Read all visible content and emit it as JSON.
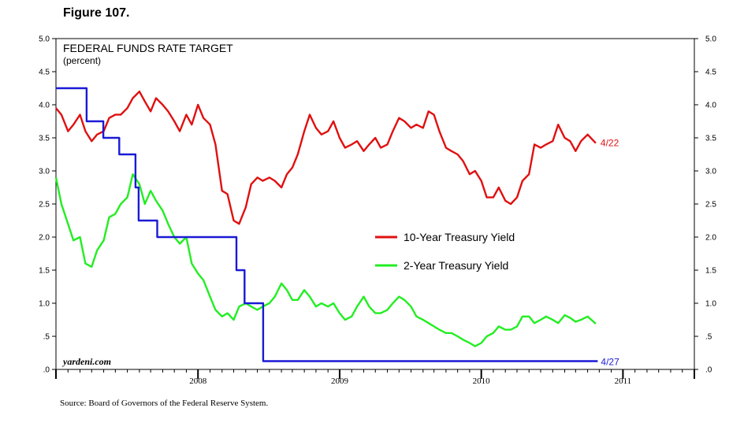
{
  "figure_title": "Figure 107.",
  "source": "Source: Board of Governors of the Federal Reserve System.",
  "credit": "yardeni.com",
  "colors": {
    "fed_funds": "#1a1ad6",
    "ten_year": "#e01010",
    "two_year": "#22ee22"
  },
  "chart_data": {
    "type": "line",
    "title": "FEDERAL FUNDS RATE TARGET",
    "subtitle": "(percent)",
    "xlabel": "",
    "ylabel": "",
    "ylim": [
      0,
      5
    ],
    "xlim": [
      "2007-07-01",
      "2012-01-01"
    ],
    "grid": false,
    "legend_position": "center-right",
    "y_ticks": [
      ".0",
      ".5",
      "1.0",
      "1.5",
      "2.0",
      "2.5",
      "3.0",
      "3.5",
      "4.0",
      "4.5",
      "5.0"
    ],
    "y_tick_values": [
      0,
      0.5,
      1,
      1.5,
      2,
      2.5,
      3,
      3.5,
      4,
      4.5,
      5
    ],
    "x_year_labels": [
      "2008",
      "2009",
      "2010",
      "2011"
    ],
    "x_year_label_dates": [
      "2008-07-01",
      "2009-07-01",
      "2010-07-01",
      "2011-07-01"
    ],
    "end_labels": {
      "ten_year": "4/22",
      "fed_funds": "4/27"
    },
    "series": [
      {
        "name": "10-Year Treasury Yield",
        "key": "ten_year",
        "x": [
          "2007-07-01",
          "2007-07-15",
          "2007-08-01",
          "2007-08-15",
          "2007-09-01",
          "2007-09-15",
          "2007-10-01",
          "2007-10-15",
          "2007-11-01",
          "2007-11-15",
          "2007-12-01",
          "2007-12-15",
          "2008-01-01",
          "2008-01-15",
          "2008-02-01",
          "2008-02-15",
          "2008-03-01",
          "2008-03-15",
          "2008-04-01",
          "2008-04-15",
          "2008-05-01",
          "2008-05-15",
          "2008-06-01",
          "2008-06-15",
          "2008-07-01",
          "2008-07-15",
          "2008-08-01",
          "2008-08-15",
          "2008-09-01",
          "2008-09-15",
          "2008-10-01",
          "2008-10-15",
          "2008-11-01",
          "2008-11-15",
          "2008-12-01",
          "2008-12-15",
          "2009-01-01",
          "2009-01-15",
          "2009-02-01",
          "2009-02-15",
          "2009-03-01",
          "2009-03-15",
          "2009-04-01",
          "2009-04-15",
          "2009-05-01",
          "2009-05-15",
          "2009-06-01",
          "2009-06-15",
          "2009-07-01",
          "2009-07-15",
          "2009-08-01",
          "2009-08-15",
          "2009-09-01",
          "2009-09-15",
          "2009-10-01",
          "2009-10-15",
          "2009-11-01",
          "2009-11-15",
          "2009-12-01",
          "2009-12-15",
          "2010-01-01",
          "2010-01-15",
          "2010-02-01",
          "2010-02-15",
          "2010-03-01",
          "2010-03-15",
          "2010-04-01",
          "2010-04-15",
          "2010-05-01",
          "2010-05-15",
          "2010-06-01",
          "2010-06-15",
          "2010-07-01",
          "2010-07-15",
          "2010-08-01",
          "2010-08-15",
          "2010-09-01",
          "2010-09-15",
          "2010-10-01",
          "2010-10-15",
          "2010-11-01",
          "2010-11-15",
          "2010-12-01",
          "2010-12-15",
          "2011-01-01",
          "2011-01-15",
          "2011-02-01",
          "2011-02-15",
          "2011-03-01",
          "2011-03-15",
          "2011-04-01",
          "2011-04-22"
        ],
        "values": [
          3.95,
          3.85,
          3.6,
          3.7,
          3.85,
          3.6,
          3.45,
          3.55,
          3.6,
          3.8,
          3.85,
          3.85,
          3.95,
          4.1,
          4.2,
          4.05,
          3.9,
          4.1,
          4.0,
          3.9,
          3.75,
          3.6,
          3.85,
          3.7,
          4.0,
          3.8,
          3.7,
          3.4,
          2.7,
          2.65,
          2.25,
          2.2,
          2.45,
          2.8,
          2.9,
          2.85,
          2.9,
          2.85,
          2.75,
          2.95,
          3.05,
          3.25,
          3.6,
          3.85,
          3.65,
          3.55,
          3.6,
          3.75,
          3.5,
          3.35,
          3.4,
          3.45,
          3.3,
          3.4,
          3.5,
          3.35,
          3.4,
          3.6,
          3.8,
          3.75,
          3.65,
          3.7,
          3.65,
          3.9,
          3.85,
          3.6,
          3.35,
          3.3,
          3.25,
          3.15,
          2.95,
          3.0,
          2.85,
          2.6,
          2.6,
          2.75,
          2.55,
          2.5,
          2.6,
          2.85,
          2.95,
          3.4,
          3.35,
          3.4,
          3.45,
          3.7,
          3.5,
          3.45,
          3.3,
          3.45,
          3.55,
          3.42
        ]
      },
      {
        "name": "2-Year Treasury Yield",
        "key": "two_year",
        "x": [
          "2007-07-01",
          "2007-07-15",
          "2007-08-01",
          "2007-08-15",
          "2007-09-01",
          "2007-09-15",
          "2007-10-01",
          "2007-10-15",
          "2007-11-01",
          "2007-11-15",
          "2007-12-01",
          "2007-12-15",
          "2008-01-01",
          "2008-01-15",
          "2008-02-01",
          "2008-02-15",
          "2008-03-01",
          "2008-03-15",
          "2008-04-01",
          "2008-04-15",
          "2008-05-01",
          "2008-05-15",
          "2008-06-01",
          "2008-06-15",
          "2008-07-01",
          "2008-07-15",
          "2008-08-01",
          "2008-08-15",
          "2008-09-01",
          "2008-09-15",
          "2008-10-01",
          "2008-10-15",
          "2008-11-01",
          "2008-11-15",
          "2008-12-01",
          "2008-12-15",
          "2009-01-01",
          "2009-01-15",
          "2009-02-01",
          "2009-02-15",
          "2009-03-01",
          "2009-03-15",
          "2009-04-01",
          "2009-04-15",
          "2009-05-01",
          "2009-05-15",
          "2009-06-01",
          "2009-06-15",
          "2009-07-01",
          "2009-07-15",
          "2009-08-01",
          "2009-08-15",
          "2009-09-01",
          "2009-09-15",
          "2009-10-01",
          "2009-10-15",
          "2009-11-01",
          "2009-11-15",
          "2009-12-01",
          "2009-12-15",
          "2010-01-01",
          "2010-01-15",
          "2010-02-01",
          "2010-02-15",
          "2010-03-01",
          "2010-03-15",
          "2010-04-01",
          "2010-04-15",
          "2010-05-01",
          "2010-05-15",
          "2010-06-01",
          "2010-06-15",
          "2010-07-01",
          "2010-07-15",
          "2010-08-01",
          "2010-08-15",
          "2010-09-01",
          "2010-09-15",
          "2010-10-01",
          "2010-10-15",
          "2010-11-01",
          "2010-11-15",
          "2010-12-01",
          "2010-12-15",
          "2011-01-01",
          "2011-01-15",
          "2011-02-01",
          "2011-02-15",
          "2011-03-01",
          "2011-03-15",
          "2011-04-01",
          "2011-04-22"
        ],
        "values": [
          2.9,
          2.5,
          2.2,
          1.95,
          2.0,
          1.6,
          1.55,
          1.8,
          1.95,
          2.3,
          2.35,
          2.5,
          2.6,
          2.95,
          2.8,
          2.5,
          2.7,
          2.55,
          2.4,
          2.2,
          2.0,
          1.9,
          2.0,
          1.6,
          1.45,
          1.35,
          1.1,
          0.9,
          0.8,
          0.85,
          0.75,
          0.95,
          1.0,
          0.95,
          0.9,
          0.95,
          1.0,
          1.1,
          1.3,
          1.2,
          1.05,
          1.05,
          1.2,
          1.1,
          0.95,
          1.0,
          0.95,
          1.0,
          0.85,
          0.75,
          0.8,
          0.95,
          1.1,
          0.95,
          0.85,
          0.85,
          0.9,
          1.0,
          1.1,
          1.05,
          0.95,
          0.8,
          0.75,
          0.7,
          0.65,
          0.6,
          0.55,
          0.55,
          0.5,
          0.45,
          0.4,
          0.35,
          0.4,
          0.5,
          0.55,
          0.65,
          0.6,
          0.6,
          0.65,
          0.8,
          0.8,
          0.7,
          0.75,
          0.8,
          0.75,
          0.7,
          0.82,
          0.78,
          0.72,
          0.75,
          0.8,
          0.69
        ]
      },
      {
        "name": "",
        "key": "fed_funds",
        "step": true,
        "x": [
          "2007-07-01",
          "2007-09-18",
          "2007-10-31",
          "2007-12-11",
          "2008-01-22",
          "2008-01-30",
          "2008-03-18",
          "2008-04-30",
          "2008-10-08",
          "2008-10-29",
          "2008-12-16",
          "2011-04-27"
        ],
        "values": [
          4.25,
          3.75,
          3.5,
          3.25,
          2.75,
          2.25,
          2.0,
          2.0,
          1.5,
          1.0,
          0.125,
          0.125
        ]
      }
    ]
  },
  "legend": [
    {
      "label": "10-Year Treasury Yield",
      "key": "ten_year"
    },
    {
      "label": "2-Year Treasury Yield",
      "key": "two_year"
    }
  ]
}
